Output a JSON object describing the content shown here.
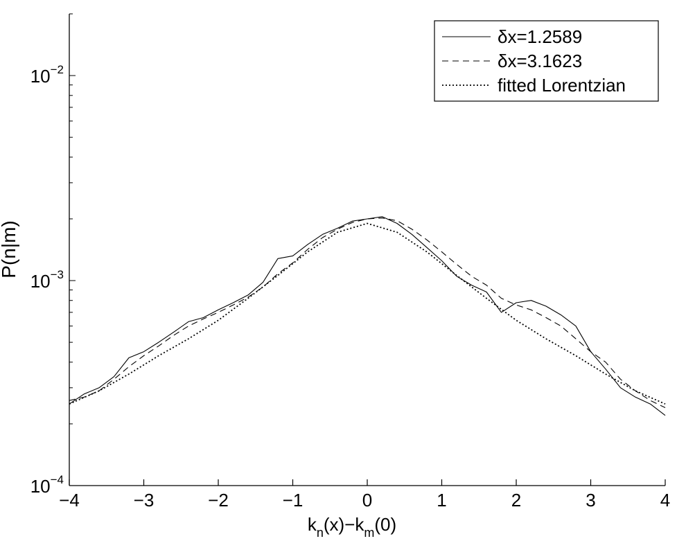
{
  "chart_data": {
    "type": "line",
    "xlabel": {
      "base": "k",
      "sub1": "n",
      "mid": "(x)−k",
      "sub2": "m",
      "tail": "(0)"
    },
    "ylabel": "P(n|m)",
    "xlim": [
      -4,
      4
    ],
    "ylim": [
      0.0001,
      0.02
    ],
    "yscale": "log",
    "grid": false,
    "legend_position": "top-right",
    "x_ticks": [
      -4,
      -3,
      -2,
      -1,
      0,
      1,
      2,
      3,
      4
    ],
    "x_tick_labels": [
      "−4",
      "−3",
      "−2",
      "−1",
      "0",
      "1",
      "2",
      "3",
      "4"
    ],
    "y_ticks": [
      {
        "value": 0.0001,
        "base": "10",
        "exp": "−4"
      },
      {
        "value": 0.001,
        "base": "10",
        "exp": "−3"
      },
      {
        "value": 0.01,
        "base": "10",
        "exp": "−2"
      }
    ],
    "series": [
      {
        "name": "δx=1.2589",
        "style": "solid",
        "x": [
          -4.0,
          -3.8,
          -3.6,
          -3.4,
          -3.2,
          -3.0,
          -2.8,
          -2.6,
          -2.4,
          -2.2,
          -2.0,
          -1.8,
          -1.6,
          -1.4,
          -1.2,
          -1.0,
          -0.8,
          -0.6,
          -0.4,
          -0.2,
          0.0,
          0.2,
          0.4,
          0.6,
          0.8,
          1.0,
          1.2,
          1.4,
          1.6,
          1.8,
          2.0,
          2.2,
          2.4,
          2.6,
          2.8,
          3.0,
          3.2,
          3.4,
          3.6,
          3.8,
          4.0
        ],
        "y": [
          0.00025,
          0.00028,
          0.0003,
          0.00034,
          0.00042,
          0.00045,
          0.0005,
          0.00056,
          0.00063,
          0.00066,
          0.00072,
          0.00078,
          0.00085,
          0.00098,
          0.00128,
          0.00132,
          0.0015,
          0.00168,
          0.0018,
          0.00195,
          0.002,
          0.00205,
          0.0019,
          0.00168,
          0.00145,
          0.00125,
          0.00105,
          0.00095,
          0.00088,
          0.0007,
          0.00078,
          0.0008,
          0.00075,
          0.00068,
          0.0006,
          0.00045,
          0.00037,
          0.0003,
          0.00027,
          0.00025,
          0.00022
        ]
      },
      {
        "name": "δx=3.1623",
        "style": "dashed",
        "x": [
          -4.0,
          -3.8,
          -3.6,
          -3.4,
          -3.2,
          -3.0,
          -2.8,
          -2.6,
          -2.4,
          -2.2,
          -2.0,
          -1.8,
          -1.6,
          -1.4,
          -1.2,
          -1.0,
          -0.8,
          -0.6,
          -0.4,
          -0.2,
          0.0,
          0.2,
          0.4,
          0.6,
          0.8,
          1.0,
          1.2,
          1.4,
          1.6,
          1.8,
          2.0,
          2.2,
          2.4,
          2.6,
          2.8,
          3.0,
          3.2,
          3.4,
          3.6,
          3.8,
          4.0
        ],
        "y": [
          0.00026,
          0.00027,
          0.00029,
          0.00033,
          0.00038,
          0.00043,
          0.00048,
          0.00054,
          0.0006,
          0.00065,
          0.0007,
          0.00076,
          0.00083,
          0.00093,
          0.00108,
          0.00122,
          0.00142,
          0.00162,
          0.00178,
          0.00192,
          0.002,
          0.00202,
          0.00196,
          0.00178,
          0.00158,
          0.00138,
          0.0012,
          0.00105,
          0.00095,
          0.00082,
          0.00076,
          0.00072,
          0.00066,
          0.0006,
          0.00052,
          0.00045,
          0.0004,
          0.00033,
          0.00029,
          0.00026,
          0.00024
        ]
      },
      {
        "name": "fitted Lorentzian",
        "style": "dotted",
        "x": [
          -4.0,
          -3.6,
          -3.2,
          -2.8,
          -2.4,
          -2.0,
          -1.6,
          -1.2,
          -0.8,
          -0.4,
          0.0,
          0.4,
          0.8,
          1.2,
          1.6,
          2.0,
          2.4,
          2.8,
          3.2,
          3.6,
          4.0
        ],
        "y": [
          0.00025,
          0.00029,
          0.00035,
          0.00043,
          0.00052,
          0.00064,
          0.00082,
          0.00106,
          0.00138,
          0.00172,
          0.0019,
          0.00172,
          0.00138,
          0.00106,
          0.00082,
          0.00064,
          0.00052,
          0.00043,
          0.00035,
          0.00029,
          0.00025
        ]
      }
    ]
  }
}
